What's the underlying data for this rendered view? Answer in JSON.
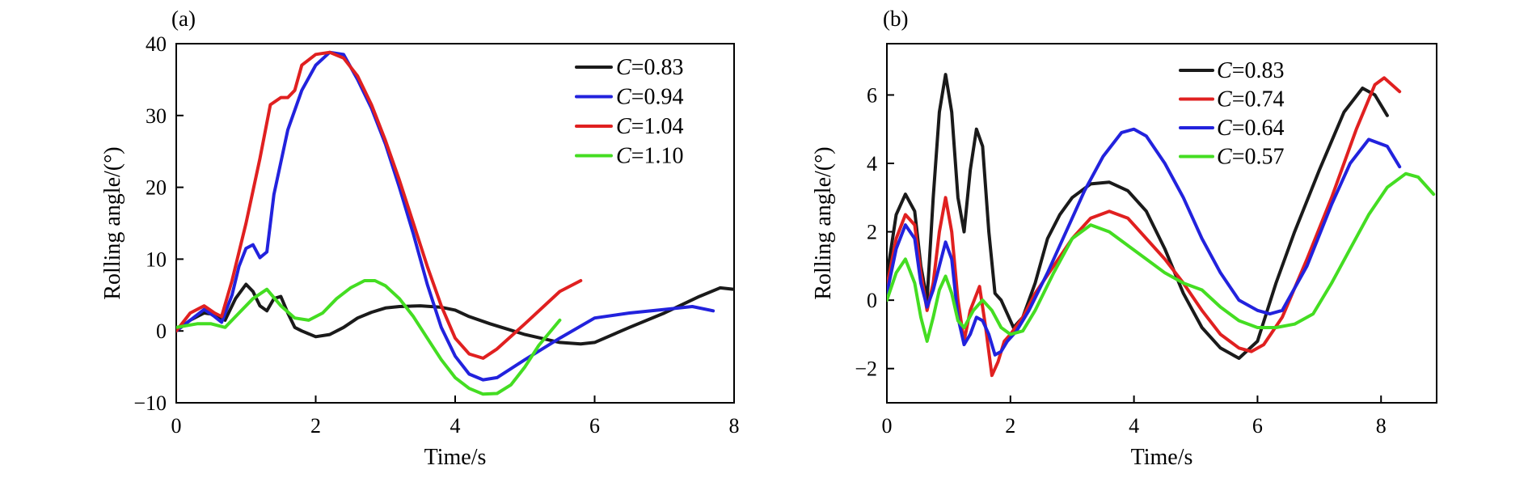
{
  "chart_data": [
    {
      "panel_label": "(a)",
      "type": "line",
      "xlabel": "Time/s",
      "ylabel": "Rolling angle/(°)",
      "xlim": [
        0,
        8
      ],
      "ylim": [
        -10,
        40
      ],
      "xticks": [
        0,
        2,
        4,
        6,
        8
      ],
      "yticks": [
        -10,
        0,
        10,
        20,
        30,
        40
      ],
      "legend_position": "top-right",
      "series": [
        {
          "name_var": "C",
          "name_val": "=0.83",
          "color": "#1a1a1a",
          "x": [
            0,
            0.2,
            0.4,
            0.55,
            0.7,
            0.85,
            1.0,
            1.1,
            1.2,
            1.3,
            1.4,
            1.5,
            1.6,
            1.7,
            1.8,
            2.0,
            2.2,
            2.4,
            2.6,
            2.8,
            3.0,
            3.2,
            3.5,
            3.8,
            4.0,
            4.2,
            4.5,
            5.0,
            5.5,
            5.8,
            6.0,
            6.5,
            7.0,
            7.5,
            7.8,
            8.0
          ],
          "y": [
            0,
            1.5,
            2.5,
            2.3,
            1.5,
            4.5,
            6.5,
            5.5,
            3.5,
            2.8,
            4.5,
            4.8,
            2.5,
            0.5,
            0,
            -0.8,
            -0.5,
            0.5,
            1.8,
            2.6,
            3.2,
            3.4,
            3.5,
            3.3,
            2.9,
            2.0,
            1.0,
            -0.5,
            -1.6,
            -1.8,
            -1.6,
            0.5,
            2.5,
            4.8,
            6.0,
            5.8
          ]
        },
        {
          "name_var": "C",
          "name_val": "=0.94",
          "color": "#2222dd",
          "x": [
            0,
            0.2,
            0.4,
            0.55,
            0.65,
            0.8,
            0.9,
            1.0,
            1.1,
            1.2,
            1.3,
            1.4,
            1.6,
            1.8,
            2.0,
            2.2,
            2.4,
            2.6,
            2.8,
            3.0,
            3.2,
            3.4,
            3.6,
            3.8,
            4.0,
            4.2,
            4.4,
            4.6,
            5.0,
            5.5,
            6.0,
            6.5,
            7.0,
            7.4,
            7.7
          ],
          "y": [
            0,
            1.5,
            3.0,
            2.0,
            1.2,
            5.0,
            9.0,
            11.5,
            12.0,
            10.2,
            11.0,
            19.0,
            28.0,
            33.5,
            37.0,
            38.8,
            38.5,
            35.0,
            31.0,
            26.0,
            20.0,
            13.5,
            6.5,
            0.5,
            -3.5,
            -6.0,
            -6.8,
            -6.5,
            -4.0,
            -1.0,
            1.8,
            2.5,
            3.0,
            3.4,
            2.8
          ]
        },
        {
          "name_var": "C",
          "name_val": "=1.04",
          "color": "#e02020",
          "x": [
            0,
            0.2,
            0.4,
            0.55,
            0.65,
            0.8,
            1.0,
            1.2,
            1.35,
            1.5,
            1.6,
            1.7,
            1.8,
            2.0,
            2.2,
            2.4,
            2.6,
            2.8,
            3.0,
            3.2,
            3.4,
            3.6,
            3.8,
            4.0,
            4.2,
            4.4,
            4.6,
            5.0,
            5.5,
            5.8
          ],
          "y": [
            0,
            2.5,
            3.5,
            2.5,
            2.0,
            7.0,
            15.0,
            24.0,
            31.5,
            32.5,
            32.5,
            33.5,
            37.0,
            38.5,
            38.8,
            38.0,
            35.5,
            31.5,
            26.5,
            21.0,
            15.0,
            9.0,
            3.5,
            -1.0,
            -3.2,
            -3.8,
            -2.5,
            1.0,
            5.5,
            7.0
          ]
        },
        {
          "name_var": "C",
          "name_val": "=1.10",
          "color": "#44dd22",
          "x": [
            0,
            0.3,
            0.5,
            0.7,
            0.9,
            1.1,
            1.3,
            1.5,
            1.7,
            1.9,
            2.1,
            2.3,
            2.5,
            2.7,
            2.85,
            3.0,
            3.2,
            3.4,
            3.6,
            3.8,
            4.0,
            4.2,
            4.4,
            4.6,
            4.8,
            5.0,
            5.2,
            5.5
          ],
          "y": [
            0.5,
            1.0,
            1.0,
            0.5,
            2.5,
            4.5,
            5.8,
            3.5,
            1.8,
            1.5,
            2.5,
            4.5,
            6.0,
            7.0,
            7.0,
            6.3,
            4.5,
            2.0,
            -1.0,
            -4.0,
            -6.5,
            -8.0,
            -8.8,
            -8.7,
            -7.5,
            -5.0,
            -2.0,
            1.5
          ]
        }
      ]
    },
    {
      "panel_label": "(b)",
      "type": "line",
      "xlabel": "Time/s",
      "ylabel": "Rolling angle/(°)",
      "xlim": [
        0,
        8.9
      ],
      "ylim": [
        -3,
        7.5
      ],
      "xticks": [
        0,
        2,
        4,
        6,
        8
      ],
      "yticks": [
        -2,
        0,
        2,
        4,
        6
      ],
      "legend_position": "top-center",
      "series": [
        {
          "name_var": "C",
          "name_val": "=0.83",
          "color": "#1a1a1a",
          "x": [
            0,
            0.15,
            0.3,
            0.45,
            0.55,
            0.65,
            0.75,
            0.85,
            0.95,
            1.05,
            1.15,
            1.25,
            1.35,
            1.45,
            1.55,
            1.65,
            1.75,
            1.85,
            1.95,
            2.05,
            2.2,
            2.4,
            2.6,
            2.8,
            3.0,
            3.3,
            3.6,
            3.9,
            4.2,
            4.5,
            4.8,
            5.1,
            5.4,
            5.7,
            6.0,
            6.3,
            6.6,
            7.0,
            7.4,
            7.7,
            7.9,
            8.1
          ],
          "y": [
            0.7,
            2.5,
            3.1,
            2.6,
            1.0,
            0.0,
            3.0,
            5.5,
            6.6,
            5.5,
            3.0,
            2.0,
            3.8,
            5.0,
            4.5,
            2.0,
            0.2,
            0.0,
            -0.4,
            -0.8,
            -0.5,
            0.5,
            1.8,
            2.5,
            3.0,
            3.4,
            3.45,
            3.2,
            2.6,
            1.5,
            0.2,
            -0.8,
            -1.4,
            -1.7,
            -1.2,
            0.5,
            2.0,
            3.8,
            5.5,
            6.2,
            6.0,
            5.4
          ]
        },
        {
          "name_var": "C",
          "name_val": "=0.74",
          "color": "#e02020",
          "x": [
            0,
            0.15,
            0.3,
            0.45,
            0.55,
            0.65,
            0.75,
            0.85,
            0.95,
            1.05,
            1.15,
            1.25,
            1.35,
            1.5,
            1.6,
            1.7,
            1.8,
            1.9,
            2.0,
            2.2,
            2.4,
            2.7,
            3.0,
            3.3,
            3.6,
            3.9,
            4.2,
            4.5,
            4.8,
            5.1,
            5.4,
            5.7,
            5.9,
            6.1,
            6.4,
            6.8,
            7.2,
            7.6,
            7.9,
            8.05,
            8.3
          ],
          "y": [
            0.4,
            1.8,
            2.5,
            2.2,
            0.8,
            -0.3,
            0.5,
            2.0,
            3.0,
            2.0,
            0.0,
            -1.2,
            -0.3,
            0.4,
            -0.8,
            -2.2,
            -1.8,
            -1.2,
            -1.0,
            -0.5,
            0.2,
            1.0,
            1.8,
            2.4,
            2.6,
            2.4,
            1.8,
            1.2,
            0.5,
            -0.3,
            -1.0,
            -1.4,
            -1.5,
            -1.3,
            -0.5,
            1.2,
            3.0,
            5.0,
            6.3,
            6.5,
            6.1
          ]
        },
        {
          "name_var": "C",
          "name_val": "=0.64",
          "color": "#2222dd",
          "x": [
            0,
            0.15,
            0.3,
            0.45,
            0.55,
            0.65,
            0.75,
            0.85,
            0.95,
            1.05,
            1.15,
            1.25,
            1.35,
            1.45,
            1.55,
            1.65,
            1.75,
            1.85,
            1.95,
            2.1,
            2.3,
            2.6,
            2.9,
            3.2,
            3.5,
            3.8,
            4.0,
            4.2,
            4.5,
            4.8,
            5.1,
            5.4,
            5.7,
            6.0,
            6.2,
            6.4,
            6.8,
            7.2,
            7.5,
            7.8,
            8.1,
            8.3
          ],
          "y": [
            0.2,
            1.5,
            2.2,
            1.8,
            0.5,
            -0.2,
            0.3,
            1.0,
            1.7,
            1.2,
            -0.5,
            -1.3,
            -1.0,
            -0.5,
            -0.6,
            -1.0,
            -1.6,
            -1.5,
            -1.2,
            -0.9,
            -0.3,
            0.8,
            2.0,
            3.2,
            4.2,
            4.9,
            5.0,
            4.8,
            4.0,
            3.0,
            1.8,
            0.8,
            0.0,
            -0.3,
            -0.4,
            -0.3,
            1.0,
            2.8,
            4.0,
            4.7,
            4.5,
            3.9
          ]
        },
        {
          "name_var": "C",
          "name_val": "=0.57",
          "color": "#44dd22",
          "x": [
            0,
            0.15,
            0.3,
            0.45,
            0.55,
            0.65,
            0.75,
            0.85,
            0.95,
            1.05,
            1.15,
            1.25,
            1.4,
            1.55,
            1.7,
            1.85,
            2.0,
            2.2,
            2.4,
            2.7,
            3.0,
            3.3,
            3.6,
            3.9,
            4.2,
            4.5,
            4.8,
            5.1,
            5.4,
            5.7,
            6.0,
            6.3,
            6.6,
            6.9,
            7.2,
            7.5,
            7.8,
            8.1,
            8.4,
            8.6,
            8.85
          ],
          "y": [
            0.0,
            0.8,
            1.2,
            0.5,
            -0.5,
            -1.2,
            -0.5,
            0.3,
            0.7,
            0.2,
            -0.6,
            -0.8,
            -0.3,
            0.0,
            -0.3,
            -0.8,
            -1.0,
            -0.9,
            -0.3,
            0.8,
            1.8,
            2.2,
            2.0,
            1.6,
            1.2,
            0.8,
            0.5,
            0.3,
            -0.2,
            -0.6,
            -0.8,
            -0.8,
            -0.7,
            -0.4,
            0.5,
            1.5,
            2.5,
            3.3,
            3.7,
            3.6,
            3.1
          ]
        }
      ]
    }
  ]
}
